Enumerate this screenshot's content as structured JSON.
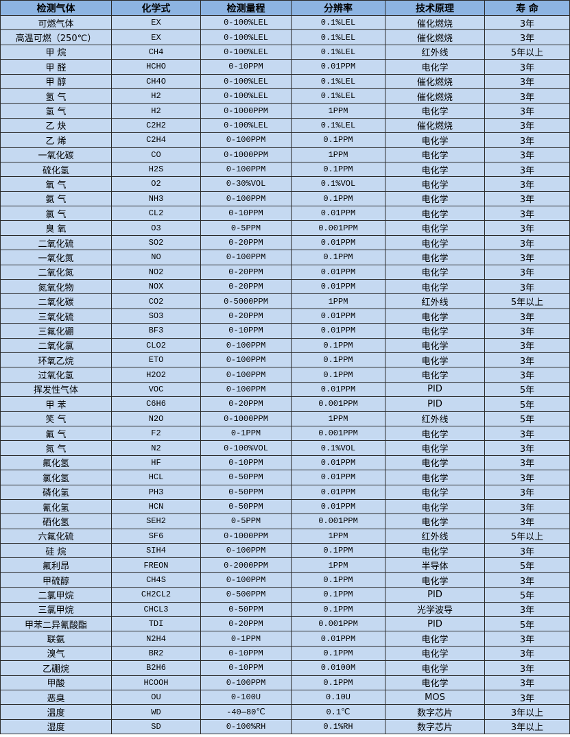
{
  "headers": [
    "检测气体",
    "化学式",
    "检测量程",
    "分辨率",
    "技术原理",
    "寿 命"
  ],
  "rows": [
    [
      "可燃气体",
      "EX",
      "0-100%LEL",
      "0.1%LEL",
      "催化燃烧",
      "3年"
    ],
    [
      "高温可燃（250℃）",
      "EX",
      "0-100%LEL",
      "0.1%LEL",
      "催化燃烧",
      "3年"
    ],
    [
      "甲 烷",
      "CH4",
      "0-100%LEL",
      "0.1%LEL",
      "红外线",
      "5年以上"
    ],
    [
      "甲 醛",
      "HCHO",
      "0-10PPM",
      "0.01PPM",
      "电化学",
      "3年"
    ],
    [
      "甲 醇",
      "CH4O",
      "0-100%LEL",
      "0.1%LEL",
      "催化燃烧",
      "3年"
    ],
    [
      "氢 气",
      "H2",
      "0-100%LEL",
      "0.1%LEL",
      "催化燃烧",
      "3年"
    ],
    [
      "氢 气",
      "H2",
      "0-1000PPM",
      "1PPM",
      "电化学",
      "3年"
    ],
    [
      "乙 炔",
      "C2H2",
      "0-100%LEL",
      "0.1%LEL",
      "催化燃烧",
      "3年"
    ],
    [
      "乙 烯",
      "C2H4",
      "0-100PPM",
      "0.1PPM",
      "电化学",
      "3年"
    ],
    [
      "一氧化碳",
      "CO",
      "0-1000PPM",
      "1PPM",
      "电化学",
      "3年"
    ],
    [
      "硫化氢",
      "H2S",
      "0-100PPM",
      "0.1PPM",
      "电化学",
      "3年"
    ],
    [
      "氧 气",
      "O2",
      "0-30%VOL",
      "0.1%VOL",
      "电化学",
      "3年"
    ],
    [
      "氨 气",
      "NH3",
      "0-100PPM",
      "0.1PPM",
      "电化学",
      "3年"
    ],
    [
      "氯 气",
      "CL2",
      "0-10PPM",
      "0.01PPM",
      "电化学",
      "3年"
    ],
    [
      "臭 氧",
      "O3",
      "0-5PPM",
      "0.001PPM",
      "电化学",
      "3年"
    ],
    [
      "二氧化硫",
      "SO2",
      "0-20PPM",
      "0.01PPM",
      "电化学",
      "3年"
    ],
    [
      "一氧化氮",
      "NO",
      "0-100PPM",
      "0.1PPM",
      "电化学",
      "3年"
    ],
    [
      "二氧化氮",
      "NO2",
      "0-20PPM",
      "0.01PPM",
      "电化学",
      "3年"
    ],
    [
      "氮氧化物",
      "NOX",
      "0-20PPM",
      "0.01PPM",
      "电化学",
      "3年"
    ],
    [
      "二氧化碳",
      "CO2",
      "0-5000PPM",
      "1PPM",
      "红外线",
      "5年以上"
    ],
    [
      "三氧化硫",
      "SO3",
      "0-20PPM",
      "0.01PPM",
      "电化学",
      "3年"
    ],
    [
      "三氟化硼",
      "BF3",
      "0-10PPM",
      "0.01PPM",
      "电化学",
      "3年"
    ],
    [
      "二氧化氯",
      "CLO2",
      "0-100PPM",
      "0.1PPM",
      "电化学",
      "3年"
    ],
    [
      "环氧乙烷",
      "ETO",
      "0-100PPM",
      "0.1PPM",
      "电化学",
      "3年"
    ],
    [
      "过氧化氢",
      "H2O2",
      "0-100PPM",
      "0.1PPM",
      "电化学",
      "3年"
    ],
    [
      "挥发性气体",
      "VOC",
      "0-100PPM",
      "0.01PPM",
      "PID",
      "5年"
    ],
    [
      "甲 苯",
      "C6H6",
      "0-20PPM",
      "0.001PPM",
      "PID",
      "5年"
    ],
    [
      "笑 气",
      "N2O",
      "0-1000PPM",
      "1PPM",
      "红外线",
      "5年"
    ],
    [
      "氟 气",
      "F2",
      "0-1PPM",
      "0.001PPM",
      "电化学",
      "3年"
    ],
    [
      "氮 气",
      "N2",
      "0-100%VOL",
      "0.1%VOL",
      "电化学",
      "3年"
    ],
    [
      "氟化氢",
      "HF",
      "0-10PPM",
      "0.01PPM",
      "电化学",
      "3年"
    ],
    [
      "氯化氢",
      "HCL",
      "0-50PPM",
      "0.01PPM",
      "电化学",
      "3年"
    ],
    [
      "磷化氢",
      "PH3",
      "0-50PPM",
      "0.01PPM",
      "电化学",
      "3年"
    ],
    [
      "氰化氢",
      "HCN",
      "0-50PPM",
      "0.01PPM",
      "电化学",
      "3年"
    ],
    [
      "硒化氢",
      "SEH2",
      "0-5PPM",
      "0.001PPM",
      "电化学",
      "3年"
    ],
    [
      "六氟化硫",
      "SF6",
      "0-1000PPM",
      "1PPM",
      "红外线",
      "5年以上"
    ],
    [
      "硅 烷",
      "SIH4",
      "0-100PPM",
      "0.1PPM",
      "电化学",
      "3年"
    ],
    [
      "氟利昂",
      "FREON",
      "0-2000PPM",
      "1PPM",
      "半导体",
      "5年"
    ],
    [
      "甲硫醇",
      "CH4S",
      "0-100PPM",
      "0.1PPM",
      "电化学",
      "3年"
    ],
    [
      "二氯甲烷",
      "CH2CL2",
      "0-500PPM",
      "0.1PPM",
      "PID",
      "5年"
    ],
    [
      "三氯甲烷",
      "CHCL3",
      "0-50PPM",
      "0.1PPM",
      "光学波导",
      "3年"
    ],
    [
      "甲苯二异氰酸酯",
      "TDI",
      "0-20PPM",
      "0.001PPM",
      "PID",
      "5年"
    ],
    [
      "联氨",
      "N2H4",
      "0-1PPM",
      "0.01PPM",
      "电化学",
      "3年"
    ],
    [
      "溴气",
      "BR2",
      "0-10PPM",
      "0.1PPM",
      "电化学",
      "3年"
    ],
    [
      "乙硼烷",
      "B2H6",
      "0-10PPM",
      "0.0100M",
      "电化学",
      "3年"
    ],
    [
      "甲酸",
      "HCOOH",
      "0-100PPM",
      "0.1PPM",
      "电化学",
      "3年"
    ],
    [
      "恶臭",
      "OU",
      "0-100U",
      "0.10U",
      "MOS",
      "3年"
    ],
    [
      "温度",
      "WD",
      "-40—80℃",
      "0.1℃",
      "数字芯片",
      "3年以上"
    ],
    [
      "湿度",
      "SD",
      "0-100%RH",
      "0.1%RH",
      "数字芯片",
      "3年以上"
    ]
  ],
  "colors": {
    "header_bg": "#8db4e2",
    "row_bg": "#c5d9f1",
    "border": "#2a2a2a"
  }
}
